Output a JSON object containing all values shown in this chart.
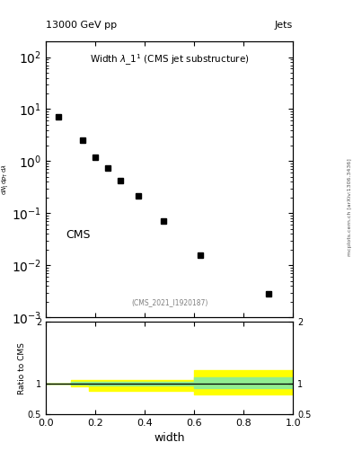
{
  "title_top_left": "13000 GeV pp",
  "title_top_right": "Jets",
  "cms_label": "CMS",
  "watermark": "(CMS_2021_I1920187)",
  "xlabel": "width",
  "ylabel_ratio": "Ratio to CMS",
  "right_label": "mcplots.cern.ch [arXiv:1306.3436]",
  "data_x": [
    0.05,
    0.15,
    0.2,
    0.25,
    0.3,
    0.375,
    0.475,
    0.625,
    0.9
  ],
  "data_y": [
    7.0,
    2.5,
    1.2,
    0.75,
    0.42,
    0.22,
    0.072,
    0.016,
    0.0028
  ],
  "ylim_main": [
    0.001,
    200
  ],
  "xlim": [
    0,
    1.0
  ],
  "ylim_ratio": [
    0.5,
    2.0
  ],
  "green_band_color": "#90EE90",
  "yellow_band_color": "#FFFF00",
  "marker_color": "black",
  "marker_size": 5,
  "background_color": "white",
  "band_edges_x": [
    0.0,
    0.1,
    0.175,
    0.3,
    0.35,
    0.6,
    1.0
  ],
  "yellow_top": [
    1.0,
    1.06,
    1.06,
    1.06,
    1.06,
    1.22,
    1.15
  ],
  "yellow_bot": [
    1.0,
    0.95,
    0.88,
    0.88,
    0.88,
    0.82,
    0.88
  ],
  "green_top": [
    1.0,
    1.025,
    1.025,
    1.03,
    1.03,
    1.1,
    1.1
  ],
  "green_bot": [
    1.0,
    0.975,
    0.97,
    0.97,
    0.97,
    0.92,
    0.92
  ]
}
